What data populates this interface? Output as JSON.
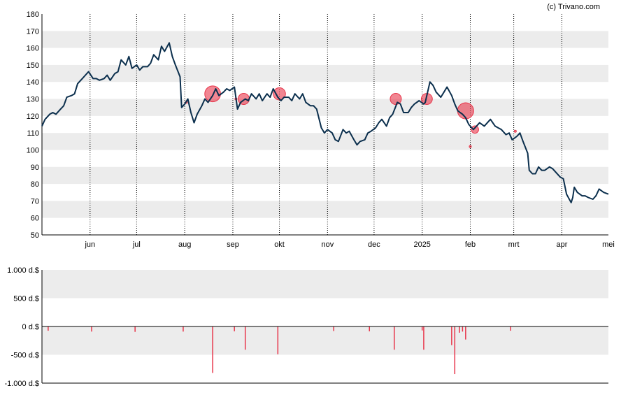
{
  "credit": "(c) Trivano.com",
  "colors": {
    "price_line": "#0b2f4d",
    "band": "#ececec",
    "grid": "#000000",
    "bubble": "#e8354a",
    "bar": "#e8354a"
  },
  "chart_data": [
    {
      "type": "line",
      "ylim": [
        50,
        180
      ],
      "yticks": [
        50,
        60,
        70,
        80,
        90,
        100,
        110,
        120,
        130,
        140,
        150,
        160,
        170,
        180
      ],
      "x_start": "2024-05-01",
      "x_end": "2025-05-01",
      "x_ticks": [
        {
          "label": "jun",
          "date": "2024-06-01"
        },
        {
          "label": "jul",
          "date": "2024-07-01"
        },
        {
          "label": "aug",
          "date": "2024-08-01"
        },
        {
          "label": "sep",
          "date": "2024-09-01"
        },
        {
          "label": "okt",
          "date": "2024-10-01"
        },
        {
          "label": "nov",
          "date": "2024-11-01"
        },
        {
          "label": "dec",
          "date": "2024-12-01"
        },
        {
          "label": "2025",
          "date": "2025-01-01"
        },
        {
          "label": "feb",
          "date": "2025-02-01"
        },
        {
          "label": "mrt",
          "date": "2025-03-01"
        },
        {
          "label": "apr",
          "date": "2025-04-01"
        },
        {
          "label": "mei",
          "date": "2025-05-01"
        }
      ],
      "series": [
        {
          "points": [
            [
              "2024-05-01",
              114
            ],
            [
              "2024-05-03",
              118
            ],
            [
              "2024-05-06",
              121
            ],
            [
              "2024-05-08",
              122
            ],
            [
              "2024-05-10",
              121
            ],
            [
              "2024-05-13",
              124
            ],
            [
              "2024-05-15",
              126
            ],
            [
              "2024-05-17",
              131
            ],
            [
              "2024-05-20",
              132
            ],
            [
              "2024-05-22",
              133
            ],
            [
              "2024-05-24",
              139
            ],
            [
              "2024-05-27",
              142
            ],
            [
              "2024-05-29",
              144
            ],
            [
              "2024-05-31",
              146
            ],
            [
              "2024-06-03",
              142
            ],
            [
              "2024-06-05",
              142
            ],
            [
              "2024-06-07",
              141
            ],
            [
              "2024-06-10",
              142
            ],
            [
              "2024-06-12",
              144
            ],
            [
              "2024-06-14",
              141
            ],
            [
              "2024-06-17",
              145
            ],
            [
              "2024-06-19",
              146
            ],
            [
              "2024-06-21",
              153
            ],
            [
              "2024-06-24",
              150
            ],
            [
              "2024-06-26",
              155
            ],
            [
              "2024-06-28",
              148
            ],
            [
              "2024-07-01",
              150
            ],
            [
              "2024-07-03",
              147
            ],
            [
              "2024-07-05",
              149
            ],
            [
              "2024-07-08",
              149
            ],
            [
              "2024-07-10",
              151
            ],
            [
              "2024-07-12",
              156
            ],
            [
              "2024-07-15",
              153
            ],
            [
              "2024-07-17",
              161
            ],
            [
              "2024-07-19",
              158
            ],
            [
              "2024-07-22",
              163
            ],
            [
              "2024-07-24",
              155
            ],
            [
              "2024-07-26",
              150
            ],
            [
              "2024-07-29",
              143
            ],
            [
              "2024-07-30",
              125
            ],
            [
              "2024-08-01",
              127
            ],
            [
              "2024-08-03",
              130
            ],
            [
              "2024-08-05",
              122
            ],
            [
              "2024-08-07",
              116
            ],
            [
              "2024-08-09",
              121
            ],
            [
              "2024-08-12",
              126
            ],
            [
              "2024-08-14",
              130
            ],
            [
              "2024-08-16",
              128
            ],
            [
              "2024-08-19",
              132
            ],
            [
              "2024-08-21",
              136
            ],
            [
              "2024-08-23",
              132
            ],
            [
              "2024-08-26",
              134
            ],
            [
              "2024-08-28",
              136
            ],
            [
              "2024-08-30",
              135
            ],
            [
              "2024-09-02",
              137
            ],
            [
              "2024-09-04",
              124
            ],
            [
              "2024-09-06",
              128
            ],
            [
              "2024-09-09",
              130
            ],
            [
              "2024-09-11",
              129
            ],
            [
              "2024-09-13",
              133
            ],
            [
              "2024-09-16",
              130
            ],
            [
              "2024-09-18",
              133
            ],
            [
              "2024-09-20",
              129
            ],
            [
              "2024-09-23",
              133
            ],
            [
              "2024-09-25",
              131
            ],
            [
              "2024-09-27",
              136
            ],
            [
              "2024-09-30",
              131
            ],
            [
              "2024-10-02",
              129
            ],
            [
              "2024-10-04",
              131
            ],
            [
              "2024-10-07",
              131
            ],
            [
              "2024-10-09",
              129
            ],
            [
              "2024-10-11",
              133
            ],
            [
              "2024-10-14",
              130
            ],
            [
              "2024-10-16",
              133
            ],
            [
              "2024-10-18",
              128
            ],
            [
              "2024-10-21",
              126
            ],
            [
              "2024-10-23",
              126
            ],
            [
              "2024-10-25",
              124
            ],
            [
              "2024-10-28",
              113
            ],
            [
              "2024-10-30",
              110
            ],
            [
              "2024-11-01",
              112
            ],
            [
              "2024-11-04",
              110
            ],
            [
              "2024-11-06",
              106
            ],
            [
              "2024-11-08",
              105
            ],
            [
              "2024-11-11",
              112
            ],
            [
              "2024-11-13",
              110
            ],
            [
              "2024-11-15",
              111
            ],
            [
              "2024-11-18",
              106
            ],
            [
              "2024-11-20",
              103
            ],
            [
              "2024-11-22",
              105
            ],
            [
              "2024-11-25",
              106
            ],
            [
              "2024-11-27",
              110
            ],
            [
              "2024-11-29",
              111
            ],
            [
              "2024-12-02",
              113
            ],
            [
              "2024-12-04",
              116
            ],
            [
              "2024-12-06",
              118
            ],
            [
              "2024-12-09",
              114
            ],
            [
              "2024-12-11",
              119
            ],
            [
              "2024-12-13",
              121
            ],
            [
              "2024-12-16",
              128
            ],
            [
              "2024-12-18",
              127
            ],
            [
              "2024-12-20",
              122
            ],
            [
              "2024-12-23",
              122
            ],
            [
              "2024-12-25",
              125
            ],
            [
              "2024-12-27",
              127
            ],
            [
              "2024-12-30",
              129
            ],
            [
              "2025-01-02",
              127
            ],
            [
              "2025-01-03",
              128
            ],
            [
              "2025-01-06",
              140
            ],
            [
              "2025-01-08",
              138
            ],
            [
              "2025-01-10",
              134
            ],
            [
              "2025-01-13",
              131
            ],
            [
              "2025-01-15",
              134
            ],
            [
              "2025-01-17",
              137
            ],
            [
              "2025-01-20",
              132
            ],
            [
              "2025-01-22",
              127
            ],
            [
              "2025-01-24",
              123
            ],
            [
              "2025-01-27",
              121
            ],
            [
              "2025-01-29",
              119
            ],
            [
              "2025-01-31",
              115
            ],
            [
              "2025-02-03",
              112
            ],
            [
              "2025-02-05",
              114
            ],
            [
              "2025-02-07",
              116
            ],
            [
              "2025-02-10",
              114
            ],
            [
              "2025-02-12",
              116
            ],
            [
              "2025-02-14",
              118
            ],
            [
              "2025-02-17",
              114
            ],
            [
              "2025-02-19",
              113
            ],
            [
              "2025-02-21",
              112
            ],
            [
              "2025-02-24",
              109
            ],
            [
              "2025-02-26",
              110
            ],
            [
              "2025-02-28",
              106
            ],
            [
              "2025-03-03",
              108
            ],
            [
              "2025-03-05",
              110
            ],
            [
              "2025-03-07",
              105
            ],
            [
              "2025-03-10",
              98
            ],
            [
              "2025-03-11",
              88
            ],
            [
              "2025-03-13",
              86
            ],
            [
              "2025-03-15",
              86
            ],
            [
              "2025-03-17",
              90
            ],
            [
              "2025-03-19",
              88
            ],
            [
              "2025-03-21",
              88
            ],
            [
              "2025-03-24",
              90
            ],
            [
              "2025-03-26",
              89
            ],
            [
              "2025-03-28",
              87
            ],
            [
              "2025-03-31",
              84
            ],
            [
              "2025-04-02",
              83
            ],
            [
              "2025-04-04",
              74
            ],
            [
              "2025-04-07",
              69
            ],
            [
              "2025-04-08",
              72
            ],
            [
              "2025-04-09",
              78
            ],
            [
              "2025-04-11",
              75
            ],
            [
              "2025-04-14",
              73
            ],
            [
              "2025-04-16",
              73
            ],
            [
              "2025-04-18",
              72
            ],
            [
              "2025-04-21",
              71
            ],
            [
              "2025-04-23",
              73
            ],
            [
              "2025-04-25",
              77
            ],
            [
              "2025-04-28",
              75
            ],
            [
              "2025-05-01",
              74
            ]
          ]
        }
      ],
      "bubbles": [
        {
          "date": "2024-08-02",
          "y": 128,
          "size": 1
        },
        {
          "date": "2024-08-19",
          "y": 133,
          "size": 82
        },
        {
          "date": "2024-09-03",
          "y": 130,
          "size": 1
        },
        {
          "date": "2024-09-08",
          "y": 130,
          "size": 41
        },
        {
          "date": "2024-10-01",
          "y": 133,
          "size": 49
        },
        {
          "date": "2024-12-15",
          "y": 130,
          "size": 41
        },
        {
          "date": "2025-01-04",
          "y": 130,
          "size": 40
        },
        {
          "date": "2025-01-29",
          "y": 123,
          "size": 85
        },
        {
          "date": "2025-02-01",
          "y": 102,
          "size": 1
        },
        {
          "date": "2025-02-04",
          "y": 112,
          "size": 18
        },
        {
          "date": "2025-03-02",
          "y": 111,
          "size": 1
        }
      ]
    },
    {
      "type": "bar",
      "ylim": [
        -1000,
        1000
      ],
      "yticks": [
        {
          "value": 1000,
          "label": "1.000 d.$"
        },
        {
          "value": 500,
          "label": "500 d.$"
        },
        {
          "value": 0,
          "label": "0 d.$"
        },
        {
          "value": -500,
          "label": "-500 d.$"
        },
        {
          "value": -1000,
          "label": "-1.000 d.$"
        }
      ],
      "bars": [
        {
          "date": "2024-05-05",
          "value": -75
        },
        {
          "date": "2024-06-02",
          "value": -90
        },
        {
          "date": "2024-06-30",
          "value": -95
        },
        {
          "date": "2024-07-31",
          "value": -90
        },
        {
          "date": "2024-08-19",
          "value": -820
        },
        {
          "date": "2024-09-02",
          "value": -85
        },
        {
          "date": "2024-09-09",
          "value": -410
        },
        {
          "date": "2024-09-30",
          "value": -490
        },
        {
          "date": "2024-11-05",
          "value": -80
        },
        {
          "date": "2024-11-28",
          "value": -85
        },
        {
          "date": "2024-12-14",
          "value": -410
        },
        {
          "date": "2025-01-01",
          "value": -70
        },
        {
          "date": "2025-01-02",
          "value": -410
        },
        {
          "date": "2025-01-20",
          "value": -330
        },
        {
          "date": "2025-01-22",
          "value": -840
        },
        {
          "date": "2025-01-25",
          "value": -110
        },
        {
          "date": "2025-01-27",
          "value": -90
        },
        {
          "date": "2025-01-29",
          "value": -230
        },
        {
          "date": "2025-02-27",
          "value": -75
        }
      ]
    }
  ]
}
